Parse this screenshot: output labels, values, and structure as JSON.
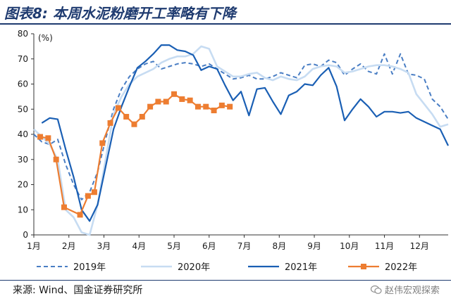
{
  "title": "图表8:  本周水泥粉磨开工率略有下降",
  "source": "来源: Wind、国金证券研究所",
  "watermark": "赵伟宏观探索",
  "chart_data": {
    "type": "line",
    "unit": "(%)",
    "ylim": [
      0,
      80
    ],
    "yticks": [
      0,
      10,
      20,
      30,
      40,
      50,
      60,
      70,
      80
    ],
    "xlim": [
      0,
      52
    ],
    "month_labels": [
      "1月",
      "2月",
      "3月",
      "4月",
      "5月",
      "6月",
      "7月",
      "8月",
      "9月",
      "10月",
      "11月",
      "12月"
    ],
    "month_positions": [
      0,
      4.4,
      8.8,
      13.2,
      17.6,
      22,
      26.4,
      30.8,
      35.2,
      39.6,
      44,
      48.4
    ],
    "series": [
      {
        "name": "2019年",
        "color": "#4a7ec4",
        "dash": "6,4",
        "width": 2,
        "marker": false,
        "x": [
          0,
          1,
          2,
          3,
          4,
          5,
          6,
          7,
          8,
          9,
          10,
          11,
          12,
          13,
          14,
          15,
          16,
          17,
          18,
          19,
          20,
          21,
          22,
          23,
          24,
          25,
          26,
          27,
          28,
          29,
          30,
          31,
          32,
          33,
          34,
          35,
          36,
          37,
          38,
          39,
          40,
          41,
          42,
          43,
          44,
          45,
          46,
          47,
          48,
          49,
          50,
          51,
          52
        ],
        "y": [
          40,
          37,
          36,
          38,
          28,
          20,
          14,
          17,
          25,
          38,
          50,
          58,
          63,
          66,
          68,
          69,
          66,
          67,
          68,
          68.5,
          68,
          67,
          68,
          66,
          64,
          62,
          62.5,
          63.5,
          62,
          62,
          63,
          64.5,
          63.5,
          62.5,
          67.5,
          68,
          67,
          69.5,
          68.5,
          63.5,
          66,
          68,
          65,
          64,
          72,
          64,
          72,
          64,
          63.5,
          62,
          54,
          51,
          46
        ]
      },
      {
        "name": "2020年",
        "color": "#c7dcf2",
        "dash": "",
        "width": 2.6,
        "marker": false,
        "x": [
          0,
          1,
          2,
          3,
          4,
          5,
          6,
          7,
          8,
          9,
          10,
          11,
          12,
          13,
          14,
          15,
          16,
          17,
          18,
          19,
          20,
          21,
          22,
          23,
          24,
          25,
          26,
          27,
          28,
          29,
          30,
          31,
          32,
          33,
          34,
          35,
          36,
          37,
          38,
          39,
          40,
          41,
          42,
          43,
          44,
          45,
          46,
          47,
          48,
          49,
          50,
          51,
          52
        ],
        "y": [
          42,
          39,
          36,
          30,
          10,
          7,
          1,
          0,
          12,
          30,
          48,
          55,
          60,
          63,
          64.5,
          66,
          68.5,
          70,
          71,
          71,
          72,
          75,
          74,
          67,
          65,
          63,
          63,
          64,
          64.5,
          62.5,
          61.5,
          63,
          62,
          61.5,
          63,
          66,
          67,
          67.5,
          67,
          64.5,
          65,
          66,
          67,
          67.5,
          67.5,
          67,
          66,
          64.5,
          56,
          52,
          48,
          43,
          44
        ]
      },
      {
        "name": "2021年",
        "color": "#1a5fb4",
        "dash": "",
        "width": 2.2,
        "marker": false,
        "x": [
          1,
          2,
          3,
          4,
          5,
          6,
          7,
          8,
          9,
          10,
          11,
          12,
          13,
          14,
          15,
          16,
          17,
          18,
          19,
          20,
          21,
          22,
          23,
          24,
          25,
          26,
          27,
          28,
          29,
          30,
          31,
          32,
          33,
          34,
          35,
          36,
          37,
          38,
          39,
          40,
          41,
          42,
          43,
          44,
          45,
          46,
          47,
          48,
          49,
          50,
          51,
          52
        ],
        "y": [
          44.5,
          46.5,
          46,
          34,
          23,
          10,
          5.5,
          12,
          27,
          42,
          51,
          59,
          66.5,
          69,
          72,
          75.5,
          75.5,
          73.5,
          73,
          71.5,
          65.5,
          67,
          66,
          59.5,
          53.5,
          57,
          47.5,
          58,
          58.5,
          53,
          48,
          55.5,
          57,
          60,
          59.5,
          63.5,
          66.5,
          59,
          45.5,
          50,
          54,
          51,
          47,
          49,
          49,
          48.5,
          49,
          46.5,
          45,
          43.5,
          42,
          35.5
        ]
      },
      {
        "name": "2022年",
        "color": "#ed7d31",
        "dash": "",
        "width": 2.2,
        "marker": true,
        "x": [
          0.8,
          1.8,
          2.8,
          3.8,
          5.8,
          6.8,
          7.6,
          8.6,
          9.6,
          10.6,
          11.6,
          12.6,
          13.6,
          14.6,
          15.6,
          16.6,
          17.6,
          18.6,
          19.6,
          20.6,
          21.6,
          22.6,
          23.6,
          24.6,
          25.6,
          26.6
        ],
        "y": [
          39,
          38.5,
          30,
          11,
          8,
          15.5,
          17,
          36.5,
          44.5,
          50.5,
          47,
          44,
          47,
          51,
          53,
          53,
          56,
          54,
          53.5,
          51,
          51,
          49.5,
          51.5,
          51,
          null,
          null
        ]
      }
    ]
  }
}
